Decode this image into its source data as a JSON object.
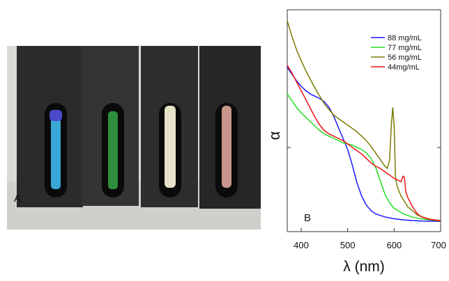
{
  "photo": {
    "panel_label": "A",
    "cuvette_colors": [
      "#3aa7d6",
      "#2f8e3e",
      "#e6e2c7",
      "#c8958c"
    ]
  },
  "chart_data": {
    "type": "line",
    "panel_label": "B",
    "xlabel": "λ (nm)",
    "ylabel": "α",
    "xlim": [
      370,
      700
    ],
    "ylim": [
      0,
      1
    ],
    "xticks": [
      400,
      500,
      600,
      700
    ],
    "grid": false,
    "legend_position": "top-right",
    "series": [
      {
        "name": "88 mg/mL",
        "color": "#1a1aff",
        "x": [
          370,
          380,
          390,
          400,
          410,
          420,
          430,
          440,
          450,
          460,
          470,
          480,
          490,
          500,
          510,
          520,
          530,
          540,
          550,
          560,
          580,
          600,
          620,
          640,
          660,
          680,
          700
        ],
        "y": [
          0.74,
          0.71,
          0.68,
          0.655,
          0.635,
          0.62,
          0.61,
          0.6,
          0.585,
          0.56,
          0.52,
          0.47,
          0.42,
          0.37,
          0.3,
          0.22,
          0.16,
          0.12,
          0.095,
          0.08,
          0.066,
          0.058,
          0.053,
          0.05,
          0.048,
          0.047,
          0.046
        ]
      },
      {
        "name": "77 mg/mL",
        "color": "#22dd22",
        "x": [
          370,
          380,
          390,
          400,
          410,
          420,
          430,
          440,
          450,
          460,
          470,
          480,
          490,
          500,
          510,
          520,
          530,
          540,
          550,
          560,
          570,
          580,
          590,
          600,
          620,
          640,
          660,
          680,
          700
        ],
        "y": [
          0.62,
          0.59,
          0.56,
          0.535,
          0.515,
          0.495,
          0.475,
          0.455,
          0.44,
          0.43,
          0.42,
          0.41,
          0.4,
          0.395,
          0.39,
          0.38,
          0.37,
          0.355,
          0.33,
          0.29,
          0.23,
          0.17,
          0.13,
          0.105,
          0.08,
          0.065,
          0.057,
          0.052,
          0.05
        ]
      },
      {
        "name": "56 mg/mL",
        "color": "#7a7a00",
        "x": [
          370,
          380,
          390,
          400,
          410,
          420,
          430,
          440,
          450,
          460,
          470,
          480,
          490,
          500,
          510,
          520,
          530,
          540,
          550,
          560,
          570,
          580,
          585,
          590,
          594,
          597,
          600,
          603,
          607,
          615,
          630,
          650,
          670,
          690,
          700
        ],
        "y": [
          0.95,
          0.88,
          0.82,
          0.77,
          0.725,
          0.685,
          0.645,
          0.61,
          0.575,
          0.55,
          0.525,
          0.51,
          0.495,
          0.48,
          0.465,
          0.45,
          0.43,
          0.41,
          0.385,
          0.355,
          0.325,
          0.295,
          0.285,
          0.32,
          0.48,
          0.56,
          0.48,
          0.24,
          0.2,
          0.16,
          0.11,
          0.075,
          0.058,
          0.05,
          0.048
        ]
      },
      {
        "name": "44mg/mL",
        "color": "#ee1111",
        "x": [
          370,
          380,
          390,
          400,
          410,
          420,
          430,
          440,
          450,
          460,
          470,
          480,
          490,
          500,
          510,
          520,
          530,
          540,
          550,
          560,
          570,
          580,
          590,
          600,
          605,
          610,
          615,
          619,
          622,
          625,
          630,
          640,
          650,
          660,
          680,
          700
        ],
        "y": [
          0.75,
          0.715,
          0.675,
          0.635,
          0.595,
          0.555,
          0.515,
          0.48,
          0.455,
          0.44,
          0.43,
          0.42,
          0.41,
          0.395,
          0.38,
          0.365,
          0.35,
          0.33,
          0.31,
          0.295,
          0.285,
          0.27,
          0.255,
          0.24,
          0.235,
          0.23,
          0.225,
          0.25,
          0.245,
          0.18,
          0.15,
          0.11,
          0.08,
          0.065,
          0.055,
          0.05
        ]
      }
    ]
  }
}
